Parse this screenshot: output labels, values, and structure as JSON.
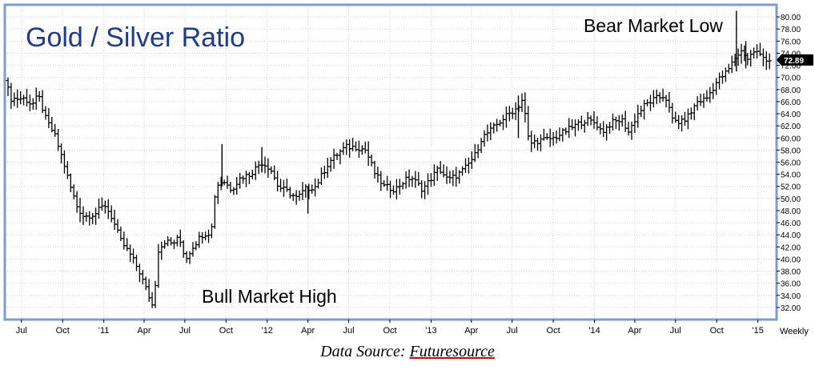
{
  "chart_data": {
    "type": "ohlc-bar",
    "title": "Gold / Silver Ratio",
    "frequency_label": "Weekly",
    "last_value_label": "72.89",
    "ylim": [
      30,
      82
    ],
    "y_ticks": [
      32,
      34,
      36,
      38,
      40,
      42,
      44,
      46,
      48,
      50,
      52,
      54,
      56,
      58,
      60,
      62,
      64,
      66,
      68,
      70,
      72,
      74,
      76,
      78,
      80
    ],
    "y_tick_labels": [
      "32.00",
      "34.00",
      "36.00",
      "38.00",
      "40.00",
      "42.00",
      "44.00",
      "46.00",
      "48.00",
      "50.00",
      "52.00",
      "54.00",
      "56.00",
      "58.00",
      "60.00",
      "62.00",
      "64.00",
      "66.00",
      "68.00",
      "70.00",
      "72.00",
      "74.00",
      "76.00",
      "78.00",
      "80.00"
    ],
    "x_range": [
      "2010-06-01",
      "2015-02-01"
    ],
    "x_ticks": [
      {
        "date": "2010-07-01",
        "label": "Jul"
      },
      {
        "date": "2010-10-01",
        "label": "Oct"
      },
      {
        "date": "2011-01-01",
        "label": "'11"
      },
      {
        "date": "2011-04-01",
        "label": "Apr"
      },
      {
        "date": "2011-07-01",
        "label": "Jul"
      },
      {
        "date": "2011-10-01",
        "label": "Oct"
      },
      {
        "date": "2012-01-01",
        "label": "'12"
      },
      {
        "date": "2012-04-01",
        "label": "Apr"
      },
      {
        "date": "2012-07-01",
        "label": "Jul"
      },
      {
        "date": "2012-10-01",
        "label": "Oct"
      },
      {
        "date": "2013-01-01",
        "label": "'13"
      },
      {
        "date": "2013-04-01",
        "label": "Apr"
      },
      {
        "date": "2013-07-01",
        "label": "Jul"
      },
      {
        "date": "2013-10-01",
        "label": "Oct"
      },
      {
        "date": "2014-01-01",
        "label": "'14"
      },
      {
        "date": "2014-04-01",
        "label": "Apr"
      },
      {
        "date": "2014-07-01",
        "label": "Jul"
      },
      {
        "date": "2014-10-01",
        "label": "Oct"
      },
      {
        "date": "2015-01-01",
        "label": "'15"
      }
    ],
    "close_path": [
      [
        "2010-06-01",
        69.5
      ],
      [
        "2010-06-15",
        66.5
      ],
      [
        "2010-07-15",
        66.5
      ],
      [
        "2010-08-01",
        65.5
      ],
      [
        "2010-08-15",
        67.0
      ],
      [
        "2010-09-01",
        63.0
      ],
      [
        "2010-09-20",
        60.5
      ],
      [
        "2010-10-10",
        56.0
      ],
      [
        "2010-10-25",
        52.0
      ],
      [
        "2010-11-10",
        48.5
      ],
      [
        "2010-11-25",
        47.0
      ],
      [
        "2010-12-20",
        47.5
      ],
      [
        "2011-01-10",
        49.0
      ],
      [
        "2011-01-25",
        47.0
      ],
      [
        "2011-02-15",
        43.0
      ],
      [
        "2011-03-10",
        40.5
      ],
      [
        "2011-03-28",
        38.0
      ],
      [
        "2011-04-18",
        34.0
      ],
      [
        "2011-04-28",
        32.0
      ],
      [
        "2011-05-10",
        41.5
      ],
      [
        "2011-05-25",
        43.0
      ],
      [
        "2011-06-10",
        42.5
      ],
      [
        "2011-06-25",
        43.5
      ],
      [
        "2011-07-10",
        40.0
      ],
      [
        "2011-07-25",
        42.0
      ],
      [
        "2011-08-15",
        44.0
      ],
      [
        "2011-09-05",
        44.5
      ],
      [
        "2011-09-15",
        52.0
      ],
      [
        "2011-10-01",
        53.0
      ],
      [
        "2011-10-20",
        51.5
      ],
      [
        "2011-11-10",
        53.5
      ],
      [
        "2011-12-01",
        54.0
      ],
      [
        "2011-12-25",
        56.0
      ],
      [
        "2012-01-15",
        55.0
      ],
      [
        "2012-02-01",
        52.0
      ],
      [
        "2012-02-25",
        51.0
      ],
      [
        "2012-03-15",
        50.0
      ],
      [
        "2012-04-01",
        51.5
      ],
      [
        "2012-04-25",
        52.0
      ],
      [
        "2012-05-25",
        56.0
      ],
      [
        "2012-06-15",
        57.5
      ],
      [
        "2012-07-01",
        58.5
      ],
      [
        "2012-07-25",
        58.5
      ],
      [
        "2012-08-15",
        58.0
      ],
      [
        "2012-09-05",
        54.0
      ],
      [
        "2012-09-25",
        52.0
      ],
      [
        "2012-10-20",
        51.5
      ],
      [
        "2012-11-10",
        53.0
      ],
      [
        "2012-11-25",
        53.5
      ],
      [
        "2012-12-20",
        51.5
      ],
      [
        "2013-01-10",
        53.5
      ],
      [
        "2013-01-25",
        55.0
      ],
      [
        "2013-02-15",
        53.0
      ],
      [
        "2013-03-10",
        54.0
      ],
      [
        "2013-03-25",
        55.0
      ],
      [
        "2013-04-15",
        57.0
      ],
      [
        "2013-05-01",
        60.0
      ],
      [
        "2013-05-25",
        61.5
      ],
      [
        "2013-06-15",
        63.0
      ],
      [
        "2013-07-01",
        64.0
      ],
      [
        "2013-07-20",
        65.0
      ],
      [
        "2013-08-01",
        66.5
      ],
      [
        "2013-08-15",
        59.0
      ],
      [
        "2013-09-01",
        59.5
      ],
      [
        "2013-10-10",
        60.0
      ],
      [
        "2013-11-01",
        61.0
      ],
      [
        "2013-11-25",
        62.0
      ],
      [
        "2013-12-20",
        63.0
      ],
      [
        "2014-01-10",
        62.5
      ],
      [
        "2014-01-25",
        61.0
      ],
      [
        "2014-02-15",
        62.5
      ],
      [
        "2014-03-10",
        63.0
      ],
      [
        "2014-03-25",
        61.0
      ],
      [
        "2014-04-15",
        64.0
      ],
      [
        "2014-05-01",
        65.5
      ],
      [
        "2014-05-25",
        66.5
      ],
      [
        "2014-06-15",
        67.0
      ],
      [
        "2014-07-01",
        63.0
      ],
      [
        "2014-07-20",
        62.5
      ],
      [
        "2014-08-10",
        64.0
      ],
      [
        "2014-08-25",
        66.0
      ],
      [
        "2014-09-15",
        66.5
      ],
      [
        "2014-10-10",
        69.5
      ],
      [
        "2014-11-01",
        71.0
      ],
      [
        "2014-11-20",
        73.5
      ],
      [
        "2014-12-05",
        74.5
      ],
      [
        "2014-12-15",
        73.0
      ],
      [
        "2015-01-01",
        74.5
      ],
      [
        "2015-01-15",
        73.5
      ],
      [
        "2015-02-01",
        72.89
      ]
    ],
    "spikes": [
      {
        "date": "2011-09-22",
        "high": 59.0,
        "low": 52.0
      },
      {
        "date": "2011-12-20",
        "high": 58.5,
        "low": 54.5
      },
      {
        "date": "2012-04-01",
        "high": 52.0,
        "low": 47.5
      },
      {
        "date": "2013-07-15",
        "high": 67.0,
        "low": 60.0
      },
      {
        "date": "2014-11-14",
        "high": 81.0,
        "low": 71.0
      },
      {
        "date": "2014-12-05",
        "high": 76.0,
        "low": 71.5
      }
    ],
    "annotations": [
      {
        "text": "Bull Market High"
      },
      {
        "text": "Bear Market Low"
      }
    ]
  },
  "caption": {
    "prefix": "Data Source:",
    "source": "Futuresource"
  }
}
